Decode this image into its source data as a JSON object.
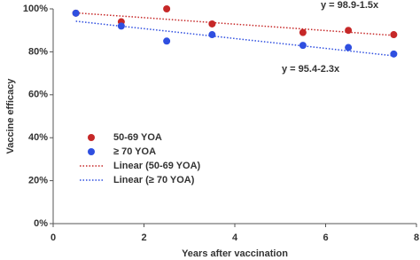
{
  "chart_data": {
    "type": "scatter",
    "x_label": "Years after vaccination",
    "y_label": "Vaccine efficacy",
    "x": [
      0.5,
      1.5,
      2.5,
      3.5,
      5.5,
      6.5,
      7.5
    ],
    "series": [
      {
        "name": "50-69 YOA",
        "color": "#c62828",
        "values": [
          98,
          94,
          100,
          93,
          89,
          90,
          88
        ]
      },
      {
        "name": "≥ 70 YOA",
        "color": "#2f4fe0",
        "values": [
          98,
          92,
          85,
          88,
          83,
          82,
          79
        ]
      }
    ],
    "trendlines": [
      {
        "name": "Linear (50-69 YOA)",
        "color": "#c62828",
        "intercept": 98.9,
        "slope": -1.5,
        "equation": "y = 98.9-1.5x"
      },
      {
        "name": "Linear (≥ 70 YOA)",
        "color": "#2f4fe0",
        "intercept": 95.4,
        "slope": -2.3,
        "equation": "y = 95.4-2.3x"
      }
    ],
    "xlim": [
      0,
      8
    ],
    "xticks": [
      0,
      2,
      4,
      6,
      8
    ],
    "ylim": [
      0,
      100
    ],
    "yticks": [
      {
        "value": 0,
        "label": "0%"
      },
      {
        "value": 20,
        "label": "20%"
      },
      {
        "value": 40,
        "label": "40%"
      },
      {
        "value": 60,
        "label": "60%"
      },
      {
        "value": 80,
        "label": "80%"
      },
      {
        "value": 100,
        "label": "100%"
      }
    ],
    "legend": "lower left"
  }
}
